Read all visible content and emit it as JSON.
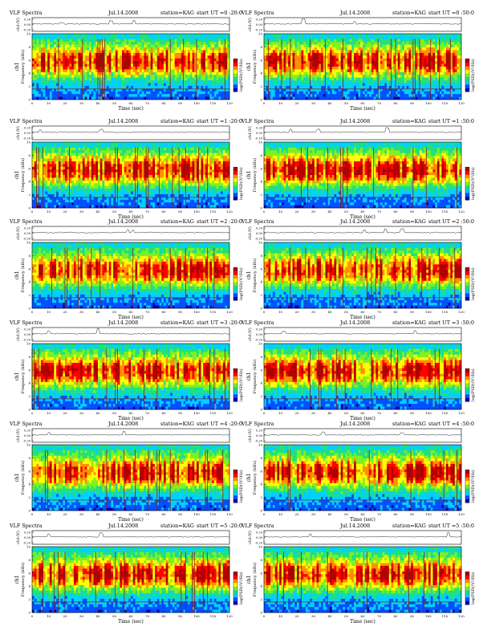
{
  "page": {
    "panels": [
      {
        "header_left": "VLF Spectra",
        "header_date": "Jul.14.2008",
        "header_station": "station=KAG",
        "header_start": "start  UT  =0 :20:0",
        "seed": 11,
        "seismo": [
          [
            18,
            0.2
          ],
          [
            48,
            0.55
          ],
          [
            62,
            0.65
          ]
        ]
      },
      {
        "header_left": "VLF Spectra",
        "header_date": "Jul.14.2008",
        "header_station": "station=KAG",
        "header_start": "start  UT  =0 :50:0",
        "seed": 23,
        "seismo": [
          [
            24,
            0.9
          ],
          [
            55,
            0.35
          ]
        ]
      },
      {
        "header_left": "VLF Spectra",
        "header_date": "Jul.14.2008",
        "header_station": "station=KAG",
        "header_start": "start  UT  =1 :20:0",
        "seed": 37,
        "seismo": [
          [
            5,
            0.4
          ],
          [
            42,
            0.5
          ]
        ]
      },
      {
        "header_left": "VLF Spectra",
        "header_date": "Jul.14.2008",
        "header_station": "station=KAG",
        "header_start": "start  UT  =1 :50:0",
        "seed": 41,
        "seismo": [
          [
            16,
            0.6
          ],
          [
            33,
            0.5
          ],
          [
            75,
            0.8
          ]
        ]
      },
      {
        "header_left": "VLF Spectra",
        "header_date": "Jul.14.2008",
        "header_station": "station=KAG",
        "header_start": "start  UT  =2 :20:0",
        "seed": 53,
        "seismo": [
          [
            58,
            0.5
          ],
          [
            61,
            0.4
          ]
        ]
      },
      {
        "header_left": "VLF Spectra",
        "header_date": "Jul.14.2008",
        "header_station": "station=KAG",
        "header_start": "start  UT  =2 :50:0",
        "seed": 67,
        "seismo": [
          [
            61,
            0.5
          ],
          [
            74,
            0.6
          ],
          [
            84,
            0.7
          ]
        ]
      },
      {
        "header_left": "VLF Spectra",
        "header_date": "Jul.14.2008",
        "header_station": "station=KAG",
        "header_start": "start  UT  =3 :20:0",
        "seed": 71,
        "seismo": [
          [
            40,
            0.9
          ],
          [
            10,
            0.5
          ]
        ]
      },
      {
        "header_left": "VLF Spectra",
        "header_date": "Jul.14.2008",
        "header_station": "station=KAG",
        "header_start": "start  UT  =3 :50:0",
        "seed": 83,
        "seismo": [
          [
            12,
            0.4
          ],
          [
            92,
            0.5
          ]
        ]
      },
      {
        "header_left": "VLF Spectra",
        "header_date": "Jul.14.2008",
        "header_station": "station=KAG",
        "header_start": "start  UT  =4 :20:0",
        "seed": 97,
        "seismo": [
          [
            10,
            0.4
          ],
          [
            56,
            0.6
          ]
        ]
      },
      {
        "header_left": "VLF Spectra",
        "header_date": "Jul.14.2008",
        "header_station": "station=KAG",
        "header_start": "start  UT  =4 :50:0",
        "seed": 101,
        "seismo": [
          [
            36,
            0.5
          ],
          [
            84,
            0.4
          ]
        ]
      },
      {
        "header_left": "VLF Spectra",
        "header_date": "Jul.14.2008",
        "header_station": "station=KAG",
        "header_start": "start  UT  =5 :20:0",
        "seed": 113,
        "seismo": [
          [
            10,
            0.5
          ],
          [
            42,
            0.7
          ]
        ]
      },
      {
        "header_left": "VLF Spectra",
        "header_date": "Jul.14.2008",
        "header_station": "station=KAG",
        "header_start": "start  UT  =5 :50:0",
        "seed": 127,
        "seismo": [
          [
            28,
            0.5
          ],
          [
            112,
            0.8
          ]
        ]
      }
    ]
  },
  "chart_data": {
    "type": "heatmap",
    "title": "VLF Spectra",
    "date": "Jul.14.2008",
    "station": "station=KAG",
    "xlabel": "Time (sec)",
    "ylabel": "Frequency (kHz)",
    "channel_label": "ch1",
    "seismo_ylabel": "ch1(V)",
    "colorbar_label": "log(PSD)(V²/Hz)",
    "x_ticks": [
      "0",
      "10",
      "20",
      "30",
      "40",
      "50",
      "60",
      "70",
      "80",
      "90",
      "100",
      "110",
      "120"
    ],
    "y_ticks": [
      "0",
      "2",
      "4",
      "6",
      "8",
      "10"
    ],
    "seismo_ticks": [
      "0.20",
      "0.00",
      "-0.20"
    ],
    "xlim": [
      0,
      120
    ],
    "ylim": [
      0,
      10
    ],
    "colorscale": [
      "#0000b0",
      "#0050ff",
      "#00d0ff",
      "#20e080",
      "#80f020",
      "#ffff00",
      "#ff9000",
      "#ff0000",
      "#b00000"
    ]
  }
}
